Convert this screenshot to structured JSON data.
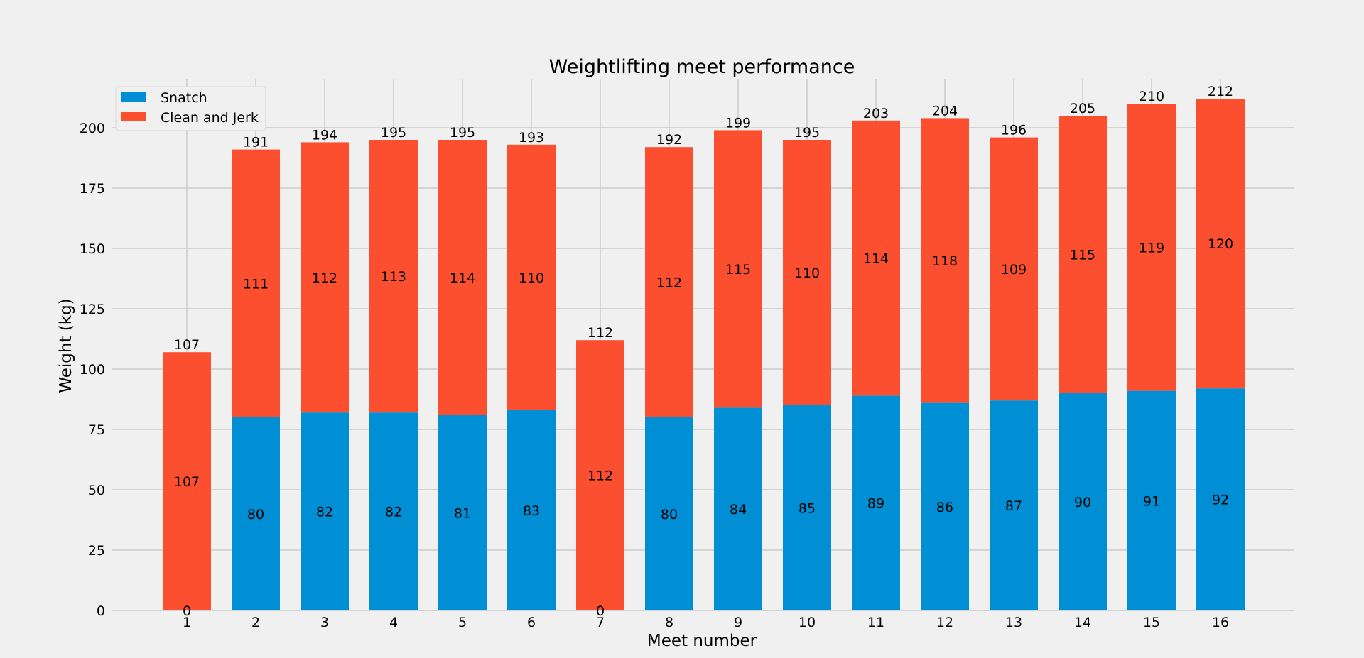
{
  "chart_data": {
    "type": "bar",
    "stacked": true,
    "title": "Weightlifting meet performance",
    "xlabel": "Meet number",
    "ylabel": "Weight (kg)",
    "categories": [
      "1",
      "2",
      "3",
      "4",
      "5",
      "6",
      "7",
      "8",
      "9",
      "10",
      "11",
      "12",
      "13",
      "14",
      "15",
      "16"
    ],
    "series": [
      {
        "name": "Snatch",
        "color": "#008fd5",
        "values": [
          0,
          80,
          82,
          82,
          81,
          83,
          0,
          80,
          84,
          85,
          89,
          86,
          87,
          90,
          91,
          92
        ]
      },
      {
        "name": "Clean and Jerk",
        "color": "#fc4f30",
        "values": [
          107,
          111,
          112,
          113,
          114,
          110,
          112,
          112,
          115,
          110,
          114,
          118,
          109,
          115,
          119,
          120
        ]
      }
    ],
    "totals": [
      107,
      191,
      194,
      195,
      195,
      193,
      112,
      192,
      199,
      195,
      203,
      204,
      196,
      205,
      210,
      212
    ],
    "ylim": [
      0,
      220
    ],
    "yticks": [
      0,
      25,
      50,
      75,
      100,
      125,
      150,
      175,
      200
    ],
    "grid": true,
    "legend_position": "upper-left"
  }
}
